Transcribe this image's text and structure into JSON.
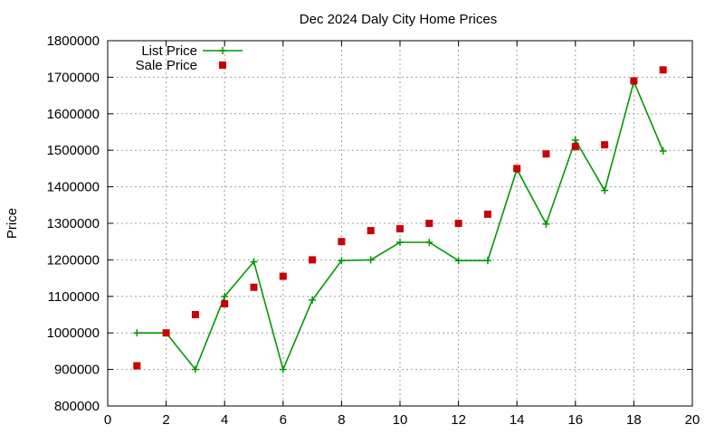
{
  "chart_data": {
    "type": "line",
    "title": "Dec 2024 Daly City Home Prices",
    "xlabel": "",
    "ylabel": "Price",
    "xlim": [
      0,
      20
    ],
    "ylim": [
      800000,
      1800000
    ],
    "x_ticks": [
      0,
      2,
      4,
      6,
      8,
      10,
      12,
      14,
      16,
      18,
      20
    ],
    "y_ticks": [
      800000,
      900000,
      1000000,
      1100000,
      1200000,
      1300000,
      1400000,
      1500000,
      1600000,
      1700000,
      1800000
    ],
    "grid": true,
    "legend_position": "top-left",
    "series": [
      {
        "name": "List Price",
        "style": "line-with-plus-markers",
        "color": "#009900",
        "x": [
          1,
          2,
          3,
          4,
          5,
          6,
          7,
          8,
          9,
          10,
          11,
          12,
          13,
          14,
          15,
          16,
          17,
          18,
          19
        ],
        "y": [
          1000000,
          1000000,
          900000,
          1100000,
          1195000,
          900000,
          1090000,
          1198000,
          1200000,
          1248000,
          1248000,
          1198000,
          1198000,
          1448000,
          1298000,
          1528000,
          1390000,
          1688000,
          1498000
        ]
      },
      {
        "name": "Sale Price",
        "style": "square-points",
        "color": "#cc0000",
        "x": [
          1,
          2,
          3,
          4,
          5,
          6,
          7,
          8,
          9,
          10,
          11,
          12,
          13,
          14,
          15,
          16,
          17,
          18,
          19
        ],
        "y": [
          910000,
          1000000,
          1050000,
          1080000,
          1125000,
          1155000,
          1200000,
          1250000,
          1280000,
          1285000,
          1300000,
          1300000,
          1325000,
          1450000,
          1490000,
          1510000,
          1515000,
          1690000,
          1720000
        ]
      }
    ]
  }
}
